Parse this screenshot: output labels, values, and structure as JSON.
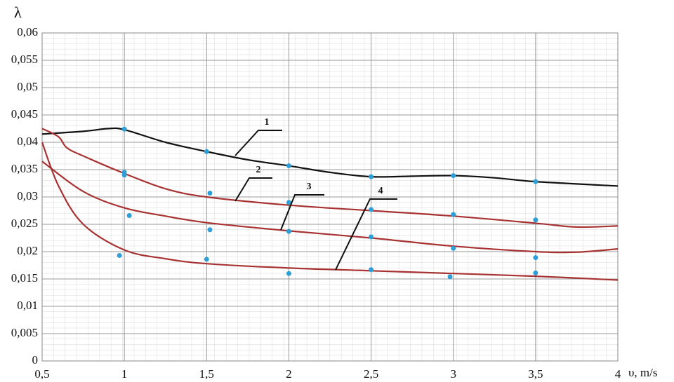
{
  "chart_data": {
    "type": "line",
    "y_label": "λ",
    "x_label": "υ, m/s",
    "xlim": [
      0.5,
      4
    ],
    "ylim": [
      0,
      0.06
    ],
    "xticks": [
      {
        "value": 0.5,
        "label": "0,5"
      },
      1,
      {
        "value": 1.5,
        "label": "1,5"
      },
      2,
      {
        "value": 2.5,
        "label": "2,5"
      },
      3,
      {
        "value": 3.5,
        "label": "3,5"
      },
      4
    ],
    "yticks": [
      0,
      {
        "value": 0.005,
        "label": "0,005"
      },
      {
        "value": 0.01,
        "label": "0,01"
      },
      {
        "value": 0.015,
        "label": "0,015"
      },
      {
        "value": 0.02,
        "label": "0,02"
      },
      {
        "value": 0.025,
        "label": "0,025"
      },
      {
        "value": 0.03,
        "label": "0,03"
      },
      {
        "value": 0.035,
        "label": "0,035"
      },
      {
        "value": 0.04,
        "label": "0,04"
      },
      {
        "value": 0.045,
        "label": "0,045"
      },
      {
        "value": 0.05,
        "label": "0,05"
      },
      {
        "value": 0.055,
        "label": "0,055"
      },
      {
        "value": 0.06,
        "label": "0,06"
      }
    ],
    "grid": true,
    "series": [
      {
        "name": "1",
        "color": "#111111",
        "x": [
          0.5,
          0.75,
          0.9,
          1,
          1.25,
          1.5,
          1.75,
          2,
          2.25,
          2.5,
          2.75,
          3,
          3.25,
          3.5,
          4
        ],
        "values": [
          0.0415,
          0.042,
          0.0425,
          0.0423,
          0.04,
          0.0383,
          0.0368,
          0.0357,
          0.0345,
          0.0337,
          0.0338,
          0.0339,
          0.0335,
          0.0328,
          0.032
        ]
      },
      {
        "name": "2",
        "color": "#a83232",
        "x": [
          0.5,
          0.6,
          0.65,
          0.75,
          1,
          1.25,
          1.5,
          2,
          2.5,
          3,
          3.5,
          3.75,
          4
        ],
        "values": [
          0.0425,
          0.041,
          0.039,
          0.0375,
          0.0343,
          0.0315,
          0.03,
          0.0285,
          0.0275,
          0.0265,
          0.0252,
          0.0245,
          0.0247
        ]
      },
      {
        "name": "3",
        "color": "#a83232",
        "x": [
          0.5,
          0.75,
          1,
          1.25,
          1.5,
          2,
          2.5,
          3,
          3.5,
          3.75,
          4
        ],
        "values": [
          0.0365,
          0.031,
          0.028,
          0.0265,
          0.0253,
          0.0238,
          0.0225,
          0.021,
          0.02,
          0.0199,
          0.0205
        ]
      },
      {
        "name": "4",
        "color": "#a83232",
        "x": [
          0.5,
          0.6,
          0.75,
          1,
          1.25,
          1.5,
          2,
          2.5,
          3,
          3.5,
          4
        ],
        "values": [
          0.04,
          0.032,
          0.025,
          0.0203,
          0.0187,
          0.0178,
          0.017,
          0.0165,
          0.016,
          0.0155,
          0.0148
        ]
      }
    ],
    "points": {
      "color": "#2e9fd6",
      "x": [
        1,
        1,
        1,
        1.03,
        0.97,
        1.5,
        1.52,
        1.52,
        1.5,
        2,
        2,
        2,
        2,
        2.5,
        2.5,
        2.5,
        2.5,
        3,
        3,
        3,
        2.98,
        3.5,
        3.5,
        3.5,
        3.5
      ],
      "values": [
        0.0424,
        0.0345,
        0.034,
        0.0266,
        0.0193,
        0.0383,
        0.0307,
        0.024,
        0.0186,
        0.0357,
        0.029,
        0.0237,
        0.016,
        0.0337,
        0.0277,
        0.0227,
        0.0167,
        0.0339,
        0.0268,
        0.0206,
        0.0154,
        0.0328,
        0.0258,
        0.0189,
        0.0161
      ]
    }
  }
}
